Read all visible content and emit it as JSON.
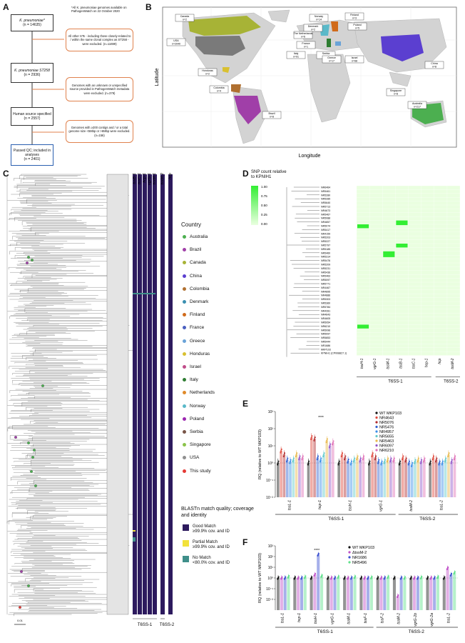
{
  "panels": {
    "a": "A",
    "b": "B",
    "c": "C",
    "d": "D",
    "e": "E",
    "f": "F"
  },
  "panelA": {
    "footnote": "*All K. pneumoniae genomes available on PathogenWatch on 22 October 2020",
    "boxes": [
      {
        "title": "K. pneumoniae*",
        "n": "(n = 14635)"
      },
      {
        "title": "K. pneumoniae ST258",
        "n": "(n = 2936)"
      },
      {
        "title": "Human source specified",
        "n": "(n = 2557)"
      },
      {
        "title": "Passed QC; included in analyses",
        "n": "(n = 2401)"
      }
    ],
    "exclusions": [
      "All other STs - including those closely-related to / within the same clonal complex as ST258 - were excluded. (n=11699)",
      "Genomes with an unknown or unspecified source provided in PathogenWatch metadata were excluded. (n=379)",
      "Genomes with ≥200 contigs and / or a total genome size <5Mbp or >6Mbp were excluded. (n=156)"
    ]
  },
  "panelB": {
    "xlabel": "Longitude",
    "ylabel": "Latitude",
    "labels": [
      {
        "name": "Canada",
        "n": "n=2"
      },
      {
        "name": "USA",
        "n": "n=2040"
      },
      {
        "name": "Honduras",
        "n": "n=2"
      },
      {
        "name": "Colombia",
        "n": "n=4"
      },
      {
        "name": "Brazil",
        "n": "n=8"
      },
      {
        "name": "Norway",
        "n": "n=14"
      },
      {
        "name": "Finland",
        "n": "n=3"
      },
      {
        "name": "Denmark",
        "n": "n=2"
      },
      {
        "name": "The Netherlands",
        "n": "n=6"
      },
      {
        "name": "Poland",
        "n": "n=5"
      },
      {
        "name": "France",
        "n": "n=1"
      },
      {
        "name": "Italy",
        "n": "n=91"
      },
      {
        "name": "Serbia",
        "n": "n=1"
      },
      {
        "name": "Greece",
        "n": "n=17"
      },
      {
        "name": "Israel",
        "n": "n=68"
      },
      {
        "name": "China",
        "n": "n=8"
      },
      {
        "name": "Singapore",
        "n": "n=8"
      },
      {
        "name": "Australia",
        "n": "n=217"
      }
    ]
  },
  "panelC": {
    "genes": [
      "tssB-1",
      "tssC-1",
      "hcp-1",
      "vgrG-1",
      "tssM-1",
      "tssM-2",
      "hcp"
    ],
    "groups": [
      "T6SS-1",
      "T6SS-2"
    ],
    "scale": "0.01",
    "country_title": "Country",
    "countries": [
      {
        "name": "Australia",
        "color": "#4caf50"
      },
      {
        "name": "Brazil",
        "color": "#a03fa8"
      },
      {
        "name": "Canada",
        "color": "#a7b336"
      },
      {
        "name": "China",
        "color": "#5b3fd0"
      },
      {
        "name": "Colombia",
        "color": "#b07030"
      },
      {
        "name": "Denmark",
        "color": "#3a8fb0"
      },
      {
        "name": "Finland",
        "color": "#d06a1a"
      },
      {
        "name": "France",
        "color": "#4a5fc0"
      },
      {
        "name": "Greece",
        "color": "#6aa3d8"
      },
      {
        "name": "Honduras",
        "color": "#d9c030"
      },
      {
        "name": "Israel",
        "color": "#c04d8a"
      },
      {
        "name": "Italy",
        "color": "#2e7d32"
      },
      {
        "name": "Netherlands",
        "color": "#e08a2a"
      },
      {
        "name": "Norway",
        "color": "#5ab9c9"
      },
      {
        "name": "Poland",
        "color": "#9c27b0"
      },
      {
        "name": "Serbia",
        "color": "#795548"
      },
      {
        "name": "Singapore",
        "color": "#8bc34a"
      },
      {
        "name": "USA",
        "color": "#909090"
      },
      {
        "name": "This study",
        "color": "#e53935"
      }
    ],
    "blast_title": "BLASTn match quality; coverage and identity",
    "blast": [
      {
        "name": "Good Match",
        "sub": "≥99.9% cov. and ID",
        "color": "#2d1a5e"
      },
      {
        "name": "Partial Match",
        "sub": "≥99.9% cov. and ID",
        "color": "#f2e23b"
      },
      {
        "name": "No Match",
        "sub": "<80.0% cov. and ID",
        "color": "#3f8f8a"
      }
    ]
  },
  "panelD": {
    "title": "SNP count relative to KPNIH1",
    "scale": [
      "1.00",
      "0.75",
      "0.50",
      "0.25",
      "0.00"
    ],
    "isolates": [
      "NR6464",
      "NR5461",
      "NR5280",
      "NR5285",
      "NR5640",
      "NR5713",
      "NR4673",
      "NR5467",
      "NR5088",
      "NR4857",
      "NR5074",
      "NR5417",
      "NR4159",
      "NR5203",
      "NR5227",
      "NR5797",
      "NR5185",
      "NR5460",
      "NR5314",
      "NR5476",
      "NR5209",
      "NR5231",
      "NR5436",
      "NR5463",
      "NR5097",
      "NR5771",
      "NR4467",
      "NR4895",
      "NR4886",
      "NR5303",
      "NR5360",
      "NR5784",
      "NR4281",
      "NR4643",
      "NR4605",
      "NR5054",
      "NR6210",
      "NR5096",
      "NR5097",
      "NR5853",
      "NR5444",
      "NR1686",
      "MKP103",
      "KPNIH1 (CP008827.1)"
    ],
    "genes": [
      "tssH-1",
      "vgrG-1",
      "tssM-1",
      "tssB-1",
      "tssC-1",
      "hcp-1",
      "hcp",
      "tssM-2"
    ],
    "groups": [
      "T6SS-1",
      "T6SS-2"
    ]
  },
  "panelE": {
    "ylabel": "RQ (relative to WT MKP103)",
    "yticks": [
      "10³",
      "10²",
      "10¹",
      "10⁰",
      "10⁻¹",
      "10⁻²"
    ],
    "genes": [
      "tssL-1",
      "hcp-1",
      "tssH-1",
      "vgrG-1",
      "tssM-2",
      "tssL-2"
    ],
    "groups": [
      "T6SS-1",
      "T6SS-2"
    ],
    "sig": "****",
    "legend": [
      {
        "name": "WT MKP103",
        "color": "#111111"
      },
      {
        "name": "NR4643",
        "color": "#e0473a"
      },
      {
        "name": "NR5076",
        "color": "#b0292a"
      },
      {
        "name": "NR5476",
        "color": "#2f5fd0"
      },
      {
        "name": "NR4957",
        "color": "#3a8ee8"
      },
      {
        "name": "NR5655",
        "color": "#5fc9c9"
      },
      {
        "name": "NR5463",
        "color": "#e8b84a"
      },
      {
        "name": "NR6097",
        "color": "#8f55c9"
      },
      {
        "name": "NR6210",
        "color": "#e070b5"
      }
    ],
    "chart_data": {
      "type": "bar",
      "categories": [
        "tssL-1",
        "hcp-1",
        "tssH-1",
        "vgrG-1",
        "tssM-2",
        "tssL-2"
      ],
      "yscale": "log",
      "ylim": [
        0.01,
        1000
      ],
      "series": [
        {
          "name": "WT MKP103",
          "values": [
            1,
            1,
            1,
            1,
            1,
            1
          ]
        },
        {
          "name": "NR4643",
          "values": [
            5,
            30,
            3,
            3,
            2,
            2
          ]
        },
        {
          "name": "NR5076",
          "values": [
            3,
            25,
            2,
            2,
            1.5,
            1.5
          ]
        },
        {
          "name": "NR5476",
          "values": [
            1.5,
            2,
            1.3,
            1.2,
            1,
            1
          ]
        },
        {
          "name": "NR4957",
          "values": [
            1.2,
            1.5,
            1,
            1,
            0.8,
            1
          ]
        },
        {
          "name": "NR5655",
          "values": [
            1.5,
            3,
            1.5,
            1.2,
            1.2,
            1.5
          ]
        },
        {
          "name": "NR5463",
          "values": [
            3,
            20,
            2,
            1.5,
            1.5,
            3
          ]
        },
        {
          "name": "NR6097",
          "values": [
            2,
            10,
            1.5,
            1.5,
            1.2,
            1.2
          ]
        },
        {
          "name": "NR6210",
          "values": [
            2,
            15,
            2,
            1.5,
            1.5,
            2
          ]
        }
      ]
    }
  },
  "panelF": {
    "ylabel": "RQ (relative to WT MKP103)",
    "yticks": [
      "10³",
      "10²",
      "10¹",
      "10⁰",
      "10⁻¹",
      "10⁻²"
    ],
    "genes": [
      "tssL-1",
      "hcp-1",
      "tssH-1",
      "vgrG-1",
      "tssM-1",
      "tssF-1",
      "tssF-2",
      "tssM-2",
      "vgrG-2b",
      "vgrG-2a",
      "tssL-2"
    ],
    "groups": [
      "T6SS-1",
      "T6SS-2"
    ],
    "sig": "****",
    "legend": [
      {
        "name": "WT MKP103",
        "color": "#111111"
      },
      {
        "name": "ΔtssM-2",
        "color": "#c050c8"
      },
      {
        "name": "NR1686",
        "color": "#3a4fd0"
      },
      {
        "name": "NR5496",
        "color": "#5ee08a"
      }
    ],
    "chart_data": {
      "type": "bar",
      "categories": [
        "tssL-1",
        "hcp-1",
        "tssH-1",
        "vgrG-1",
        "tssM-1",
        "tssF-1",
        "tssF-2",
        "tssM-2",
        "vgrG-2b",
        "vgrG-2a",
        "tssL-2"
      ],
      "yscale": "log",
      "ylim": [
        0.001,
        1000
      ],
      "series": [
        {
          "name": "WT MKP103",
          "values": [
            1,
            1,
            1,
            1,
            1,
            1,
            1,
            1,
            1,
            1,
            1
          ]
        },
        {
          "name": "ΔtssM-2",
          "values": [
            1,
            1,
            2,
            1,
            1,
            1,
            1,
            0.02,
            1,
            1,
            8
          ]
        },
        {
          "name": "NR1686",
          "values": [
            1,
            1,
            150,
            1,
            1,
            1,
            1,
            1,
            1,
            1,
            2
          ]
        },
        {
          "name": "NR5496",
          "values": [
            1.3,
            1.2,
            1.5,
            1.2,
            1.2,
            1.1,
            1.2,
            1,
            1.1,
            1.2,
            3
          ]
        }
      ]
    }
  }
}
